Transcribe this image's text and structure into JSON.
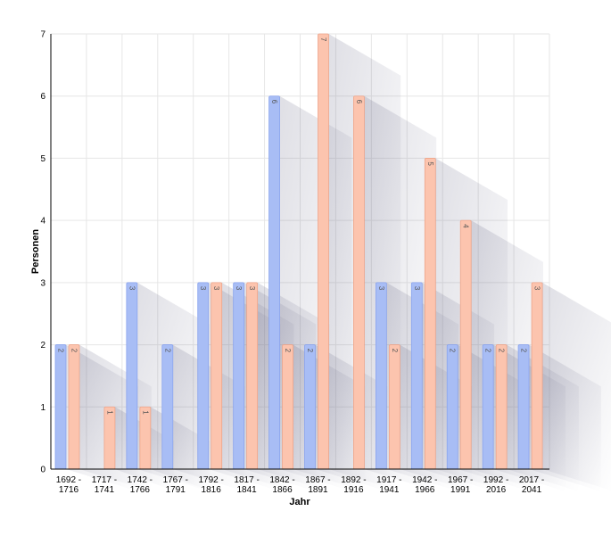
{
  "chart_data": {
    "type": "bar",
    "xlabel": "Jahr",
    "ylabel": "Personen",
    "ylim": [
      0,
      7
    ],
    "yticks": [
      0,
      1,
      2,
      3,
      4,
      5,
      6,
      7
    ],
    "grid": true,
    "categories": [
      [
        "1692 -",
        "1716"
      ],
      [
        "1717 -",
        "1741"
      ],
      [
        "1742 -",
        "1766"
      ],
      [
        "1767 -",
        "1791"
      ],
      [
        "1792 -",
        "1816"
      ],
      [
        "1817 -",
        "1841"
      ],
      [
        "1842 -",
        "1866"
      ],
      [
        "1867 -",
        "1891"
      ],
      [
        "1892 -",
        "1916"
      ],
      [
        "1917 -",
        "1941"
      ],
      [
        "1942 -",
        "1966"
      ],
      [
        "1967 -",
        "1991"
      ],
      [
        "1992 -",
        "2016"
      ],
      [
        "2017 -",
        "2041"
      ]
    ],
    "series": [
      {
        "color": "#a8bdf5",
        "stroke": "#8aa4ee",
        "values": [
          2,
          0,
          3,
          2,
          3,
          3,
          6,
          2,
          0,
          3,
          3,
          2,
          2,
          2
        ]
      },
      {
        "color": "#fcc4ae",
        "stroke": "#eea58a",
        "values": [
          2,
          1,
          1,
          0,
          3,
          3,
          2,
          7,
          6,
          2,
          5,
          4,
          2,
          3
        ]
      }
    ]
  }
}
